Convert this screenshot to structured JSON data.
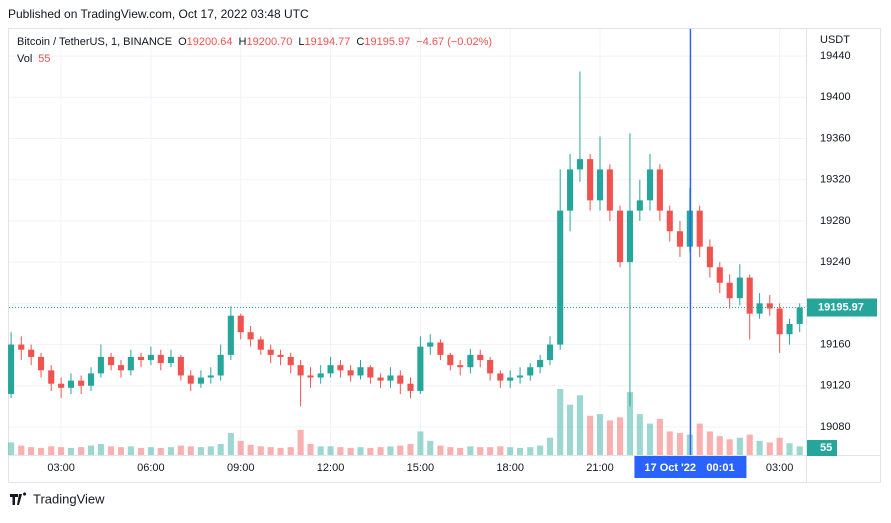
{
  "header": {
    "published": "Published on TradingView.com, Oct 17, 2022 03:48 UTC"
  },
  "chart_data": {
    "type": "candlestick",
    "symbol": "Bitcoin / TetherUS, 1, BINANCE",
    "legend_ohlc": [
      {
        "label": "O",
        "value": 19200.64
      },
      {
        "label": "H",
        "value": 19200.7,
        "text": "19200.70"
      },
      {
        "label": "L",
        "value": 19194.77
      },
      {
        "label": "C",
        "value": 19195.97
      }
    ],
    "change_text": "−4.67 (−0.02%)",
    "volume_label": "Vol",
    "currency": "USDT",
    "up_color": "#26a69a",
    "down_color": "#ef5350",
    "x": [
      1.33,
      1.67,
      2,
      2.33,
      2.67,
      3,
      3.33,
      3.67,
      4,
      4.33,
      4.67,
      5,
      5.33,
      5.67,
      6,
      6.33,
      6.67,
      7,
      7.33,
      7.67,
      8,
      8.33,
      8.67,
      9,
      9.33,
      9.67,
      10,
      10.33,
      10.67,
      11,
      11.33,
      11.67,
      12,
      12.33,
      12.67,
      13,
      13.33,
      13.67,
      14,
      14.33,
      14.67,
      15,
      15.33,
      15.67,
      16,
      16.33,
      16.67,
      17,
      17.33,
      17.67,
      18,
      18.33,
      18.67,
      19,
      19.33,
      19.67,
      20,
      20.33,
      20.67,
      21,
      21.33,
      21.67,
      22,
      22.33,
      22.67,
      23,
      23.33,
      23.67,
      24,
      24.33,
      24.67,
      25,
      25.33,
      25.67,
      26,
      26.33,
      26.67,
      27,
      27.33,
      27.67
    ],
    "open": [
      19112,
      19160,
      19155,
      19148,
      19135,
      19122,
      19118,
      19125,
      19120,
      19132,
      19148,
      19140,
      19135,
      19148,
      19145,
      19150,
      19142,
      19148,
      19130,
      19122,
      19128,
      19130,
      19150,
      19188,
      19172,
      19165,
      19155,
      19150,
      19148,
      19140,
      19130,
      19128,
      19132,
      19140,
      19135,
      19130,
      19138,
      19128,
      19125,
      19130,
      19122,
      19115,
      19158,
      19162,
      19150,
      19140,
      19138,
      19150,
      19145,
      19132,
      19125,
      19128,
      19130,
      19138,
      19145,
      19160,
      19290,
      19330,
      19340,
      19300,
      19330,
      19290,
      19240,
      19290,
      19300,
      19330,
      19290,
      19270,
      19255,
      19290,
      19255,
      19235,
      19220,
      19205,
      19225,
      19190,
      19200,
      19195,
      19170,
      19180
    ],
    "high": [
      19172,
      19168,
      19160,
      19152,
      19140,
      19128,
      19132,
      19130,
      19138,
      19160,
      19152,
      19145,
      19155,
      19152,
      19158,
      19155,
      19155,
      19150,
      19135,
      19135,
      19138,
      19160,
      19197,
      19190,
      19178,
      19168,
      19160,
      19155,
      19152,
      19145,
      19138,
      19140,
      19148,
      19145,
      19140,
      19145,
      19140,
      19132,
      19138,
      19135,
      19128,
      19168,
      19170,
      19165,
      19152,
      19145,
      19156,
      19155,
      19148,
      19135,
      19135,
      19138,
      19142,
      19150,
      19168,
      19330,
      19345,
      19425,
      19345,
      19362,
      19335,
      19295,
      19365,
      19320,
      19345,
      19335,
      19295,
      19280,
      19312,
      19295,
      19262,
      19240,
      19228,
      19238,
      19228,
      19210,
      19208,
      19200,
      19185,
      19200
    ],
    "low": [
      19108,
      19145,
      19140,
      19128,
      19115,
      19108,
      19112,
      19112,
      19115,
      19128,
      19135,
      19128,
      19130,
      19138,
      19140,
      19135,
      19138,
      19125,
      19115,
      19118,
      19122,
      19125,
      19145,
      19165,
      19158,
      19150,
      19142,
      19140,
      19132,
      19100,
      19118,
      19122,
      19128,
      19128,
      19124,
      19126,
      19122,
      19118,
      19118,
      19112,
      19108,
      19112,
      19150,
      19145,
      19135,
      19130,
      19132,
      19138,
      19125,
      19118,
      19118,
      19122,
      19125,
      19132,
      19140,
      19155,
      19270,
      19318,
      19290,
      19290,
      19280,
      19235,
      19100,
      19280,
      19290,
      19280,
      19260,
      19245,
      19250,
      19245,
      19225,
      19210,
      19195,
      19198,
      19165,
      19185,
      19188,
      19152,
      19160,
      19172
    ],
    "close": [
      19160,
      19155,
      19148,
      19135,
      19122,
      19118,
      19125,
      19120,
      19132,
      19148,
      19140,
      19135,
      19148,
      19145,
      19150,
      19142,
      19148,
      19130,
      19122,
      19128,
      19130,
      19150,
      19188,
      19172,
      19165,
      19155,
      19150,
      19148,
      19140,
      19130,
      19128,
      19132,
      19140,
      19135,
      19130,
      19138,
      19128,
      19125,
      19130,
      19122,
      19115,
      19158,
      19162,
      19150,
      19140,
      19138,
      19150,
      19145,
      19132,
      19125,
      19128,
      19130,
      19138,
      19145,
      19160,
      19290,
      19330,
      19340,
      19300,
      19330,
      19290,
      19240,
      19290,
      19300,
      19330,
      19290,
      19270,
      19255,
      19290,
      19255,
      19235,
      19220,
      19205,
      19225,
      19190,
      19200,
      19195,
      19170,
      19180,
      19195.97
    ],
    "volume": [
      80,
      60,
      50,
      45,
      55,
      50,
      45,
      50,
      60,
      70,
      55,
      50,
      55,
      45,
      50,
      45,
      50,
      60,
      55,
      50,
      55,
      70,
      140,
      90,
      65,
      55,
      50,
      45,
      50,
      160,
      70,
      55,
      55,
      50,
      45,
      50,
      45,
      50,
      55,
      60,
      70,
      150,
      90,
      60,
      50,
      45,
      55,
      50,
      50,
      55,
      50,
      45,
      50,
      60,
      110,
      420,
      320,
      380,
      250,
      260,
      220,
      240,
      400,
      260,
      200,
      230,
      150,
      140,
      130,
      200,
      150,
      120,
      100,
      110,
      130,
      90,
      80,
      110,
      75,
      55
    ],
    "vlim": [
      0,
      700
    ],
    "xlim": [
      1.26,
      27.88
    ],
    "ylim": [
      19052.8,
      19466.3
    ],
    "yticks": [
      19080,
      19120,
      19160,
      19200,
      19240,
      19280,
      19320,
      19360,
      19400,
      19440
    ],
    "xticks": [
      {
        "value": 3,
        "label": "03:00"
      },
      {
        "value": 6,
        "label": "06:00"
      },
      {
        "value": 9,
        "label": "09:00"
      },
      {
        "value": 12,
        "label": "12:00"
      },
      {
        "value": 15,
        "label": "15:00"
      },
      {
        "value": 18,
        "label": "18:00"
      },
      {
        "value": 21,
        "label": "21:00"
      },
      {
        "value": 27,
        "label": "03:00"
      }
    ],
    "crosshair": {
      "x": 24.02,
      "date": "17 Oct '22",
      "time": "00:01",
      "color": "#2962ff"
    },
    "grid": true
  },
  "footer": {
    "brand": "TradingView"
  }
}
